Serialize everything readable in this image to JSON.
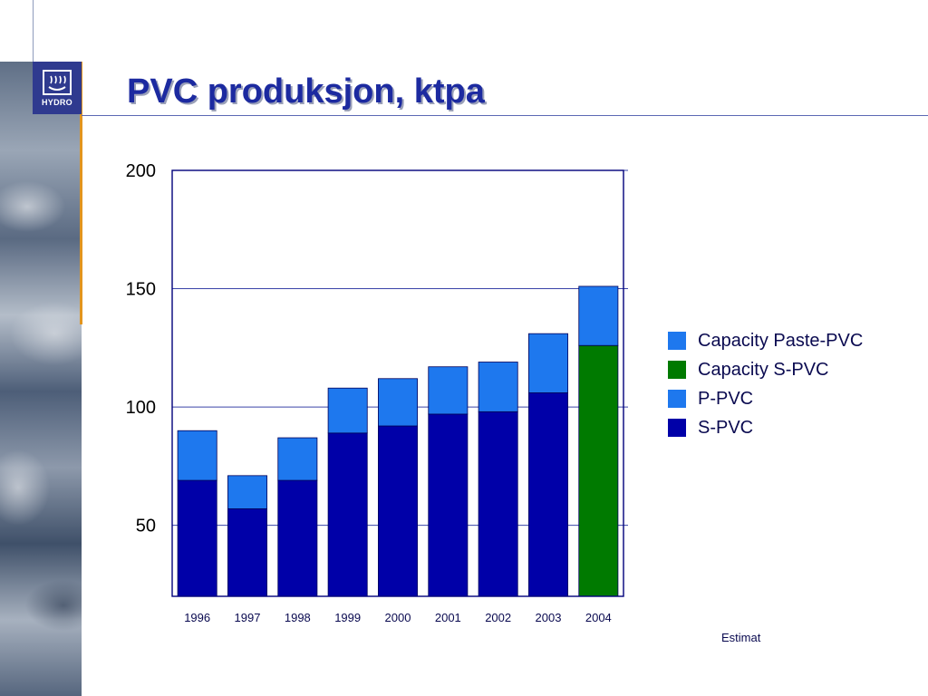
{
  "header": {
    "title": "PVC produksjon, ktpa",
    "logo_text": "HYDRO"
  },
  "chart_data": {
    "type": "bar",
    "stacked": true,
    "categories": [
      "1996",
      "1997",
      "1998",
      "1999",
      "2000",
      "2001",
      "2002",
      "2003",
      "2004"
    ],
    "series": [
      {
        "name": "S-PVC",
        "color": "#0000a8",
        "values": [
          69,
          57,
          69,
          89,
          92,
          97,
          98,
          106,
          null
        ]
      },
      {
        "name": "P-PVC",
        "color": "#1e78ee",
        "values": [
          21,
          14,
          18,
          19,
          20,
          20,
          21,
          25,
          null
        ]
      },
      {
        "name": "Capacity S-PVC",
        "color": "#007a00",
        "values": [
          null,
          null,
          null,
          null,
          null,
          null,
          null,
          null,
          126
        ]
      },
      {
        "name": "Capacity Paste-PVC",
        "color": "#1e78ee",
        "values": [
          null,
          null,
          null,
          null,
          null,
          null,
          null,
          null,
          25
        ]
      }
    ],
    "legend_order": [
      "Capacity Paste-PVC",
      "Capacity S-PVC",
      "P-PVC",
      "S-PVC"
    ],
    "legend_position": "right",
    "yticks": [
      "50",
      "100",
      "150",
      "200"
    ],
    "ylim": [
      20,
      200
    ],
    "grid": true,
    "annotation": "Estimat"
  }
}
